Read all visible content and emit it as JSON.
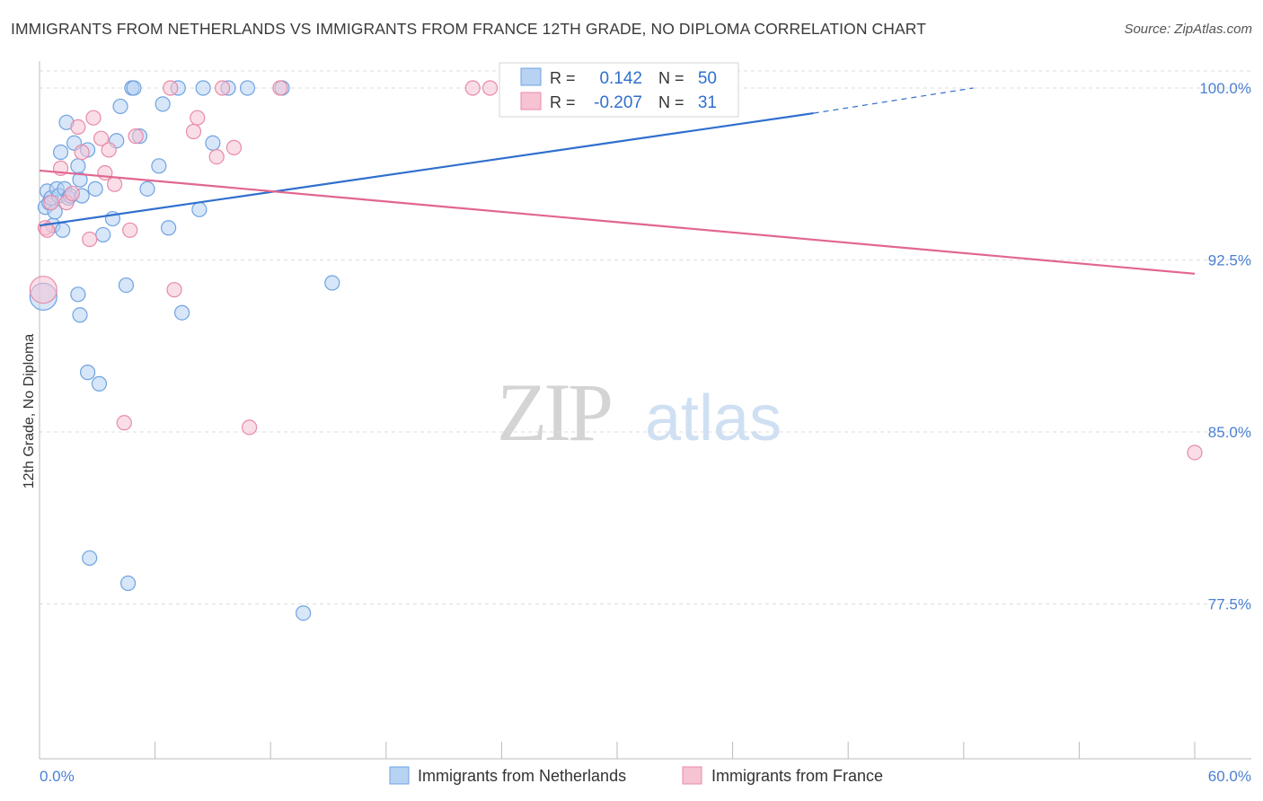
{
  "title": "IMMIGRANTS FROM NETHERLANDS VS IMMIGRANTS FROM FRANCE 12TH GRADE, NO DIPLOMA CORRELATION CHART",
  "source": "Source: ZipAtlas.com",
  "watermark": {
    "zip": "ZIP",
    "atlas": "atlas"
  },
  "colors": {
    "netherlands": "#6fa3e0",
    "netherlands_fill": "#b7d2f2",
    "netherlands_line": "#2f6fce",
    "france": "#e88aa8",
    "france_fill": "#f6c3d3",
    "france_line": "#e2668f",
    "axis_text": "#4a7fd4",
    "grid": "#dddddd"
  },
  "legend": {
    "row1": {
      "r_label": "R = ",
      "r_value": "0.142",
      "n_label": "N = ",
      "n_value": "50"
    },
    "row2": {
      "r_label": "R = ",
      "r_value": "-0.207",
      "n_label": "N = ",
      "n_value": "31"
    }
  },
  "chart_data": {
    "type": "scatter",
    "title": "IMMIGRANTS FROM NETHERLANDS VS IMMIGRANTS FROM FRANCE 12TH GRADE, NO DIPLOMA CORRELATION CHART",
    "xlabel": "",
    "ylabel": "12th Grade, No Diploma",
    "xlim": [
      0,
      60
    ],
    "ylim": [
      70.5,
      100.8
    ],
    "x_tick_labels": [
      "0.0%",
      "60.0%"
    ],
    "y_ticks": [
      100.0,
      92.5,
      85.0,
      77.5
    ],
    "y_tick_labels": [
      "100.0%",
      "92.5%",
      "85.0%",
      "77.5%"
    ],
    "grid": true,
    "legend_position": "bottom",
    "series": [
      {
        "name": "Immigrants from Netherlands",
        "trend": {
          "x": [
            0,
            40.2
          ],
          "y": [
            94.0,
            98.9
          ],
          "dashed_to": [
            48.5,
            100.0
          ]
        },
        "points": [
          [
            0.3,
            94.8
          ],
          [
            0.4,
            95.5
          ],
          [
            0.5,
            95.0
          ],
          [
            0.6,
            95.2
          ],
          [
            0.7,
            94.0
          ],
          [
            0.8,
            94.6
          ],
          [
            0.9,
            95.6
          ],
          [
            1.0,
            95.3
          ],
          [
            1.1,
            97.2
          ],
          [
            1.2,
            93.8
          ],
          [
            1.3,
            95.6
          ],
          [
            1.4,
            98.5
          ],
          [
            1.5,
            95.2
          ],
          [
            1.6,
            95.3
          ],
          [
            1.8,
            97.6
          ],
          [
            2.0,
            96.6
          ],
          [
            2.1,
            96.0
          ],
          [
            2.2,
            95.3
          ],
          [
            2.5,
            97.3
          ],
          [
            2.9,
            95.6
          ],
          [
            3.3,
            93.6
          ],
          [
            3.8,
            94.3
          ],
          [
            4.0,
            97.7
          ],
          [
            4.2,
            99.2
          ],
          [
            4.5,
            91.4
          ],
          [
            4.8,
            100.0
          ],
          [
            4.9,
            100.0
          ],
          [
            5.2,
            97.9
          ],
          [
            5.6,
            95.6
          ],
          [
            6.2,
            96.6
          ],
          [
            6.4,
            99.3
          ],
          [
            6.7,
            93.9
          ],
          [
            7.2,
            100.0
          ],
          [
            8.3,
            94.7
          ],
          [
            8.5,
            100.0
          ],
          [
            9.0,
            97.6
          ],
          [
            9.8,
            100.0
          ],
          [
            10.8,
            100.0
          ],
          [
            12.6,
            100.0
          ],
          [
            15.2,
            91.5
          ],
          [
            2.0,
            91.0
          ],
          [
            2.1,
            90.1
          ],
          [
            7.4,
            90.2
          ],
          [
            2.5,
            87.6
          ],
          [
            3.1,
            87.1
          ],
          [
            2.6,
            79.5
          ],
          [
            4.6,
            78.4
          ],
          [
            13.7,
            77.1
          ],
          [
            0.2,
            90.9
          ],
          [
            24.8,
            100.0
          ]
        ]
      },
      {
        "name": "Immigrants from France",
        "trend": {
          "x": [
            0,
            60
          ],
          "y": [
            96.4,
            91.9
          ]
        },
        "points": [
          [
            0.3,
            93.9
          ],
          [
            0.4,
            93.8
          ],
          [
            0.6,
            95.0
          ],
          [
            1.1,
            96.5
          ],
          [
            1.4,
            95.0
          ],
          [
            1.7,
            95.4
          ],
          [
            2.0,
            98.3
          ],
          [
            2.2,
            97.2
          ],
          [
            2.6,
            93.4
          ],
          [
            2.8,
            98.7
          ],
          [
            3.2,
            97.8
          ],
          [
            3.4,
            96.3
          ],
          [
            3.6,
            97.3
          ],
          [
            3.9,
            95.8
          ],
          [
            4.7,
            93.8
          ],
          [
            5.0,
            97.9
          ],
          [
            6.8,
            100.0
          ],
          [
            7.0,
            91.2
          ],
          [
            8.0,
            98.1
          ],
          [
            8.2,
            98.7
          ],
          [
            9.2,
            97.0
          ],
          [
            9.5,
            100.0
          ],
          [
            10.1,
            97.4
          ],
          [
            12.5,
            100.0
          ],
          [
            22.5,
            100.0
          ],
          [
            23.4,
            100.0
          ],
          [
            31.5,
            100.0
          ],
          [
            4.4,
            85.4
          ],
          [
            10.9,
            85.2
          ],
          [
            60.0,
            84.1
          ],
          [
            0.2,
            91.2
          ]
        ]
      }
    ]
  }
}
